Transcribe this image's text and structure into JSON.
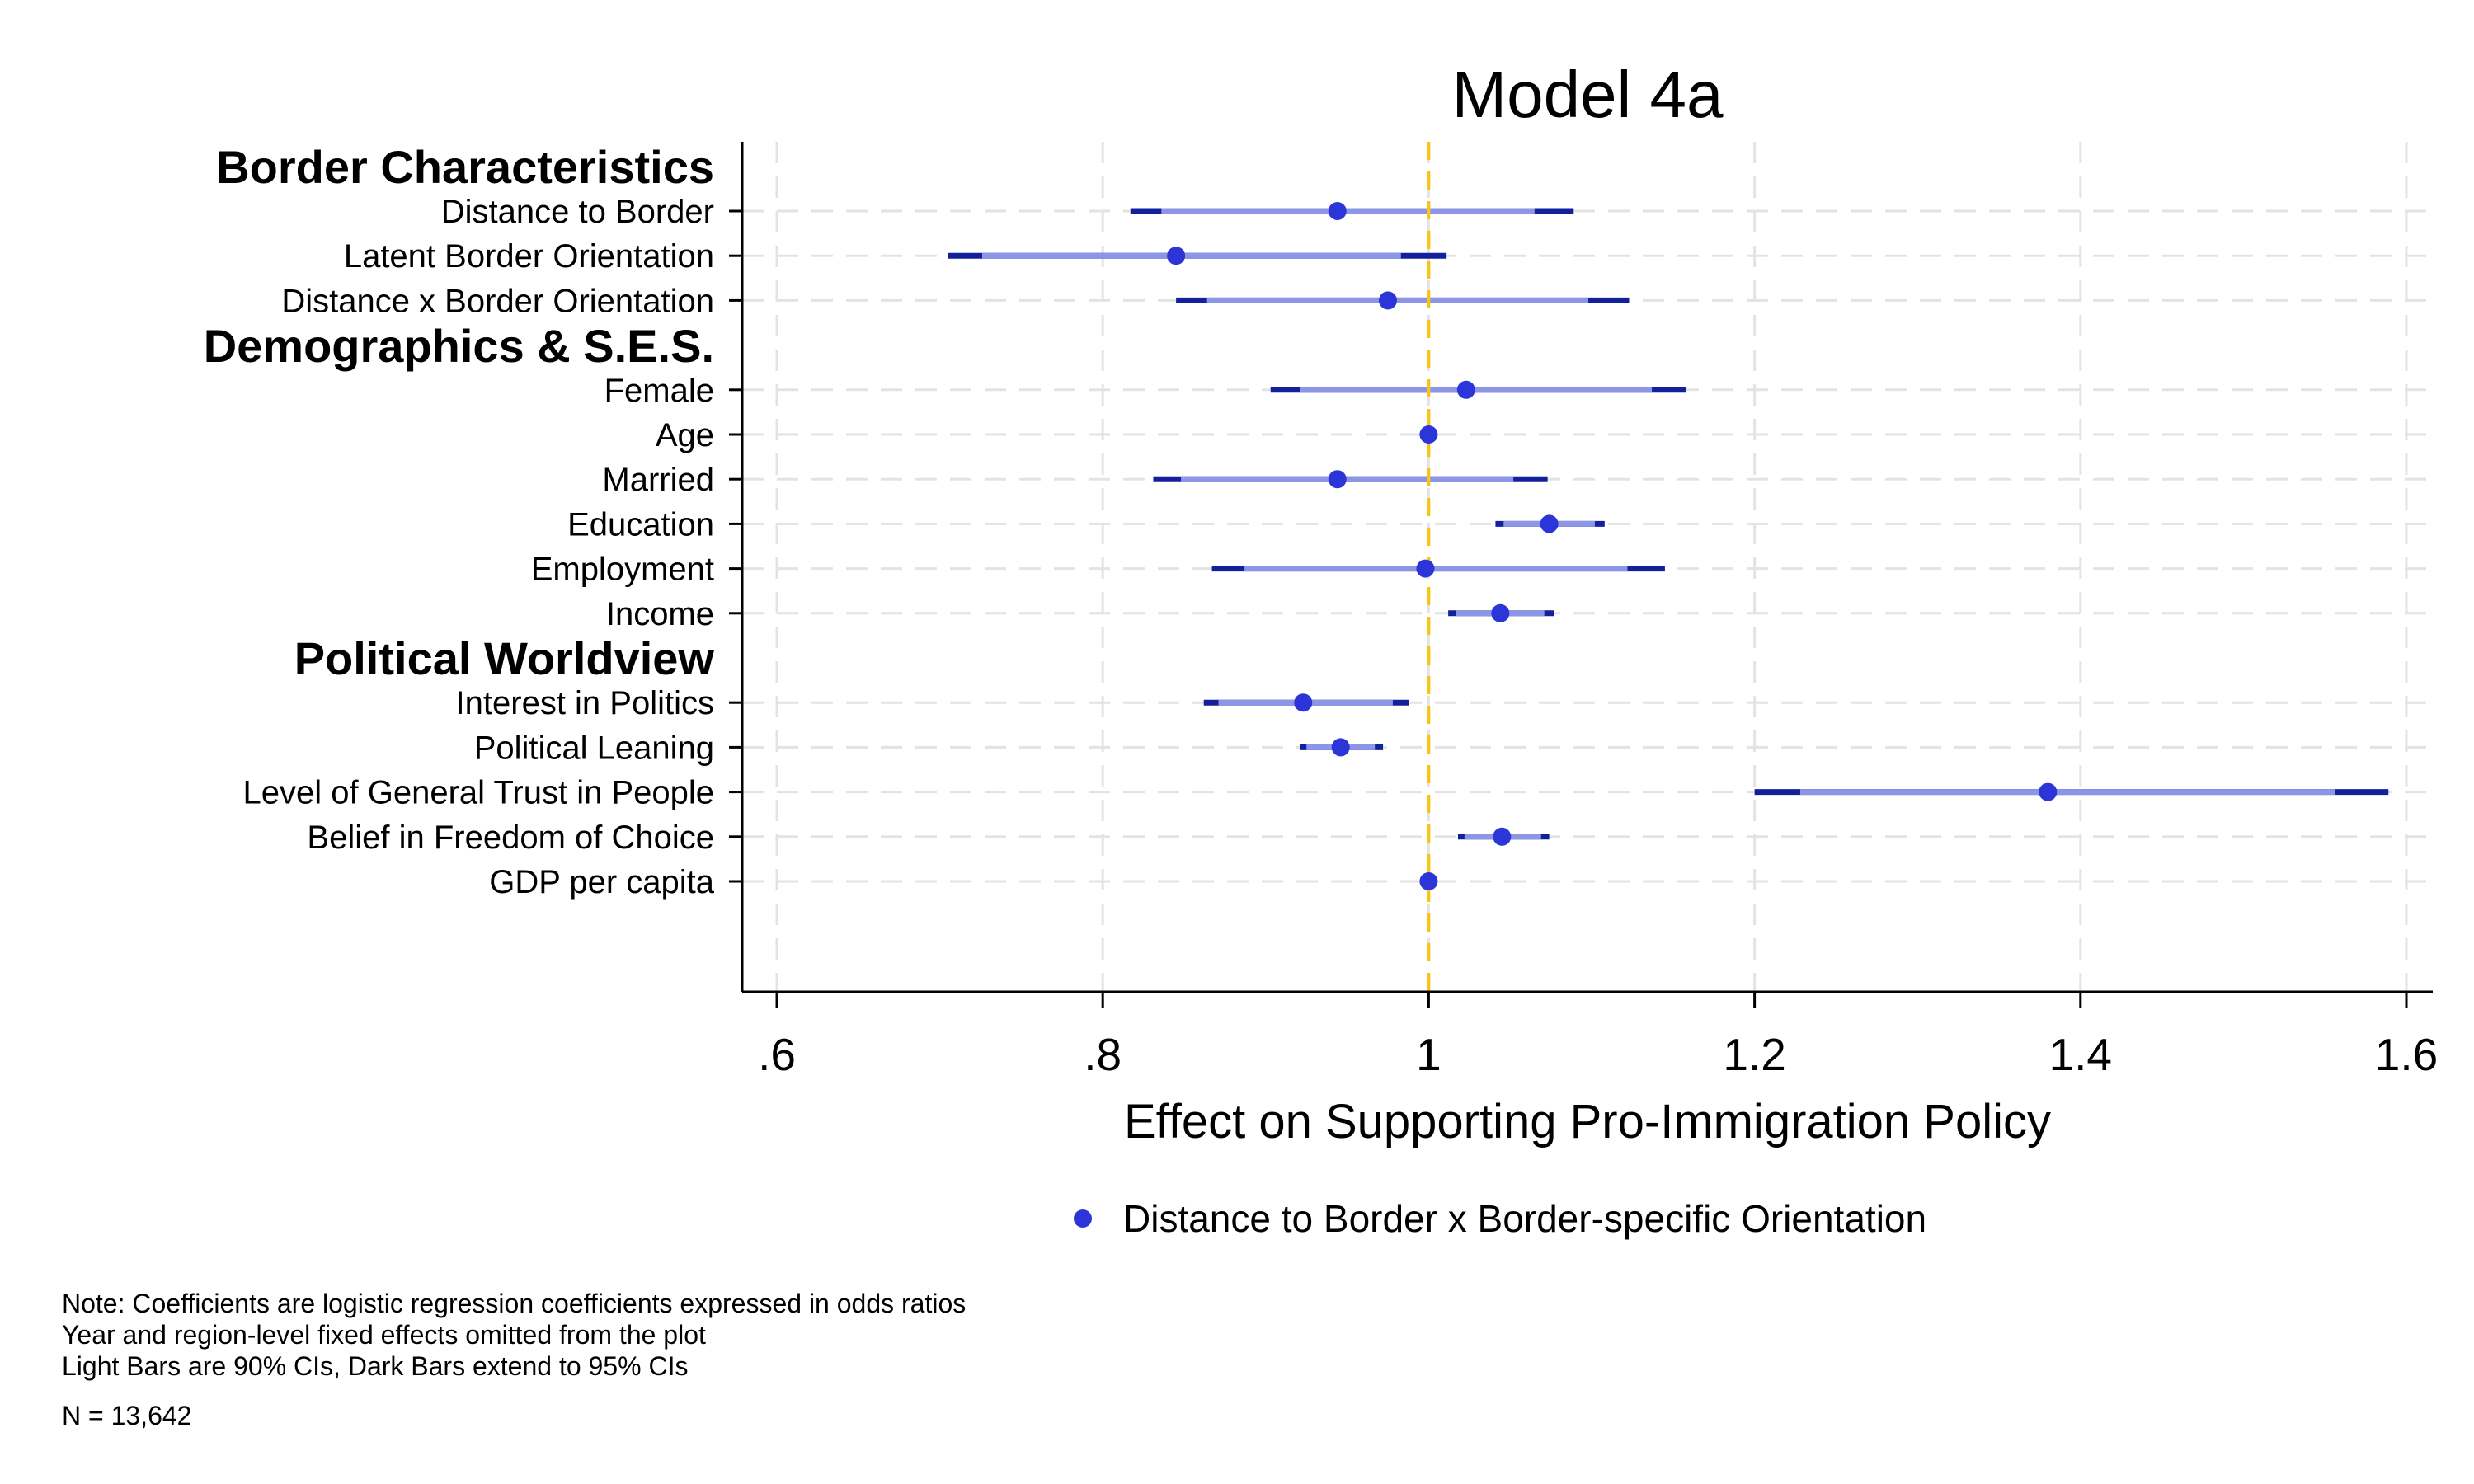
{
  "chart_data": {
    "type": "coefficient-plot",
    "title": "Model 4a",
    "xlabel": "Effect on Supporting Pro-Immigration Policy",
    "xlim": [
      0.6,
      1.6
    ],
    "xticks": [
      0.6,
      0.8,
      1.0,
      1.2,
      1.4,
      1.6
    ],
    "xtick_labels": [
      ".6",
      ".8",
      "1",
      "1.2",
      "1.4",
      "1.6"
    ],
    "reference_line": 1,
    "grid": true,
    "legend_position": "bottom",
    "legend": "Distance to Border x Border-specific Orientation",
    "colors": {
      "point": "#2b35d8",
      "ci90": "#8c95e6",
      "ci95": "#13209c",
      "reference_line": "#f5c518",
      "grid": "#e3e3e3"
    },
    "groups": [
      {
        "label": "Border Characteristics",
        "rows": [
          {
            "label": "Distance to Border",
            "estimate": 0.944,
            "ci90": [
              0.836,
              1.065
            ],
            "ci95": [
              0.817,
              1.089
            ]
          },
          {
            "label": "Latent Border Orientation",
            "estimate": 0.845,
            "ci90": [
              0.726,
              0.983
            ],
            "ci95": [
              0.705,
              1.011
            ]
          },
          {
            "label": "Distance x Border Orientation",
            "estimate": 0.975,
            "ci90": [
              0.864,
              1.098
            ],
            "ci95": [
              0.845,
              1.123
            ]
          }
        ]
      },
      {
        "label": "Demographics & S.E.S.",
        "rows": [
          {
            "label": "Female",
            "estimate": 1.023,
            "ci90": [
              0.921,
              1.137
            ],
            "ci95": [
              0.903,
              1.158
            ]
          },
          {
            "label": "Age",
            "estimate": 1.0,
            "ci90": [
              0.999,
              1.001
            ],
            "ci95": [
              0.999,
              1.001
            ]
          },
          {
            "label": "Married",
            "estimate": 0.944,
            "ci90": [
              0.848,
              1.052
            ],
            "ci95": [
              0.831,
              1.073
            ]
          },
          {
            "label": "Education",
            "estimate": 1.074,
            "ci90": [
              1.046,
              1.102
            ],
            "ci95": [
              1.041,
              1.108
            ]
          },
          {
            "label": "Employment",
            "estimate": 0.998,
            "ci90": [
              0.887,
              1.122
            ],
            "ci95": [
              0.867,
              1.145
            ]
          },
          {
            "label": "Income",
            "estimate": 1.044,
            "ci90": [
              1.017,
              1.071
            ],
            "ci95": [
              1.012,
              1.077
            ]
          }
        ]
      },
      {
        "label": "Political Worldview",
        "rows": [
          {
            "label": "Interest in Politics",
            "estimate": 0.923,
            "ci90": [
              0.871,
              0.978
            ],
            "ci95": [
              0.862,
              0.988
            ]
          },
          {
            "label": "Political Leaning",
            "estimate": 0.946,
            "ci90": [
              0.925,
              0.967
            ],
            "ci95": [
              0.921,
              0.972
            ]
          },
          {
            "label": "Level of General Trust in People",
            "estimate": 1.38,
            "ci90": [
              1.228,
              1.556
            ],
            "ci95": [
              1.2,
              1.589
            ]
          },
          {
            "label": "Belief in Freedom of Choice",
            "estimate": 1.045,
            "ci90": [
              1.022,
              1.069
            ],
            "ci95": [
              1.018,
              1.074
            ]
          },
          {
            "label": "GDP per capita",
            "estimate": 1.0,
            "ci90": [
              0.999,
              1.001
            ],
            "ci95": [
              0.999,
              1.001
            ]
          }
        ]
      }
    ],
    "notes": [
      "Note: Coefficients are logistic regression coefficients expressed in odds ratios",
      "Year and region-level fixed effects omitted from the plot",
      "Light Bars are 90% CIs, Dark Bars extend to 95% CIs"
    ],
    "n_label": "N = 13,642"
  }
}
